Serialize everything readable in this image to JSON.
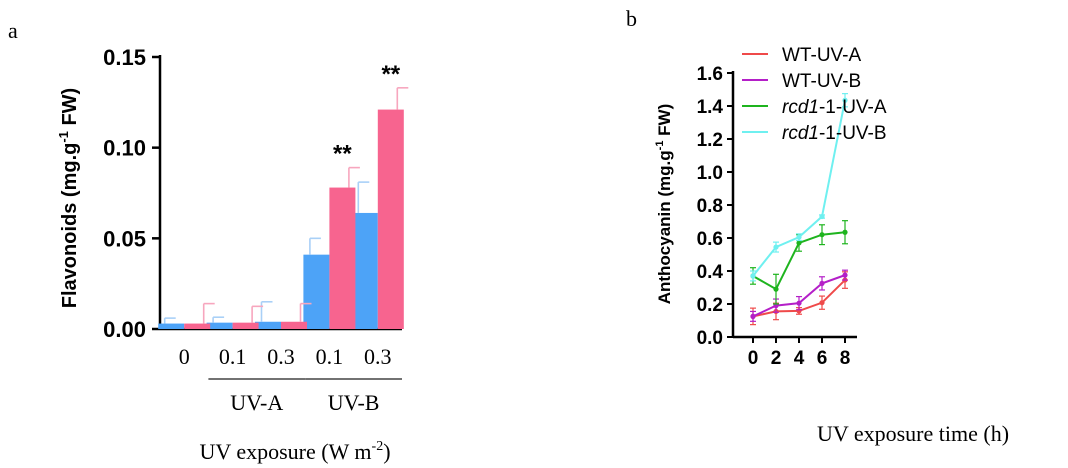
{
  "chart_data": [
    {
      "type": "bar",
      "panel_label": "a",
      "ylabel": "Flavonoids (mg.g⁻¹ FW)",
      "ylabel_parts": {
        "main": "Flavonoids (mg.g",
        "sup": "-1",
        "tail": " FW)"
      },
      "xlabel": "UV exposure (W m⁻²)",
      "xlabel_parts": {
        "main": "UV exposure (W m",
        "sup": "-2",
        "tail": ")"
      },
      "ylim": [
        0,
        0.15
      ],
      "yticks": [
        "0.00",
        "0.05",
        "0.10",
        "0.15"
      ],
      "categories": [
        "0",
        "0.1",
        "0.3",
        "0.1",
        "0.3"
      ],
      "groups": [
        {
          "label": "UV-A",
          "categories": [
            1,
            2
          ]
        },
        {
          "label": "UV-B",
          "categories": [
            3,
            4
          ]
        }
      ],
      "series": [
        {
          "values": [
            0.003,
            0.0035,
            0.004,
            0.041,
            0.064
          ],
          "errors": [
            0.003,
            0.003,
            0.011,
            0.009,
            0.017
          ],
          "color": "#4da3f7",
          "error_color": "#a9d0f7"
        },
        {
          "values": [
            0.003,
            0.0035,
            0.004,
            0.078,
            0.121
          ],
          "errors": [
            0.011,
            0.009,
            0.01,
            0.011,
            0.012
          ],
          "color": "#f7648f",
          "error_color": "#f7a6be"
        }
      ],
      "annotations": [
        {
          "category": 3,
          "series": 1,
          "text": "**"
        },
        {
          "category": 4,
          "series": 1,
          "text": "**"
        }
      ]
    },
    {
      "type": "line",
      "panel_label": "b",
      "ylabel": "Anthocyanin (mg.g⁻¹ FW)",
      "ylabel_parts": {
        "main": "Anthocyanin (mg.g",
        "sup": "-1",
        "tail": " FW)"
      },
      "xlabel": "UV exposure time (h)",
      "x": [
        0,
        2,
        4,
        6,
        8
      ],
      "xticks": [
        "0",
        "2",
        "4",
        "6",
        "8"
      ],
      "ylim": [
        0,
        1.6
      ],
      "yticks": [
        "0.0",
        "0.2",
        "0.4",
        "0.6",
        "0.8",
        "1.0",
        "1.2",
        "1.4",
        "1.6"
      ],
      "legend_position": "top-left",
      "series": [
        {
          "name": "WT-UV-A",
          "name_parts": {
            "italic": "",
            "rest": "WT-UV-A"
          },
          "color": "#ef4a4a",
          "values": [
            0.125,
            0.155,
            0.158,
            0.208,
            0.345
          ],
          "errors": [
            0.05,
            0.05,
            0.02,
            0.04,
            0.05
          ]
        },
        {
          "name": "WT-UV-B",
          "name_parts": {
            "italic": "",
            "rest": "WT-UV-B"
          },
          "color": "#b41fc8",
          "values": [
            0.125,
            0.19,
            0.205,
            0.325,
            0.375
          ],
          "errors": [
            0.03,
            0.04,
            0.04,
            0.04,
            0.03
          ]
        },
        {
          "name": "rcd1-1-UV-A",
          "name_parts": {
            "italic": "rcd1",
            "rest": "-1-UV-A"
          },
          "color": "#1eb41e",
          "values": [
            0.37,
            0.29,
            0.57,
            0.62,
            0.635
          ],
          "errors": [
            0.05,
            0.09,
            0.05,
            0.06,
            0.07
          ]
        },
        {
          "name": "rcd1-1-UV-B",
          "name_parts": {
            "italic": "rcd1",
            "rest": "-1-UV-B"
          },
          "color": "#6ff0f0",
          "values": [
            0.37,
            0.545,
            0.605,
            0.73,
            1.435
          ],
          "errors": [
            0.03,
            0.03,
            0.02,
            0.01,
            0.04
          ]
        }
      ]
    }
  ]
}
